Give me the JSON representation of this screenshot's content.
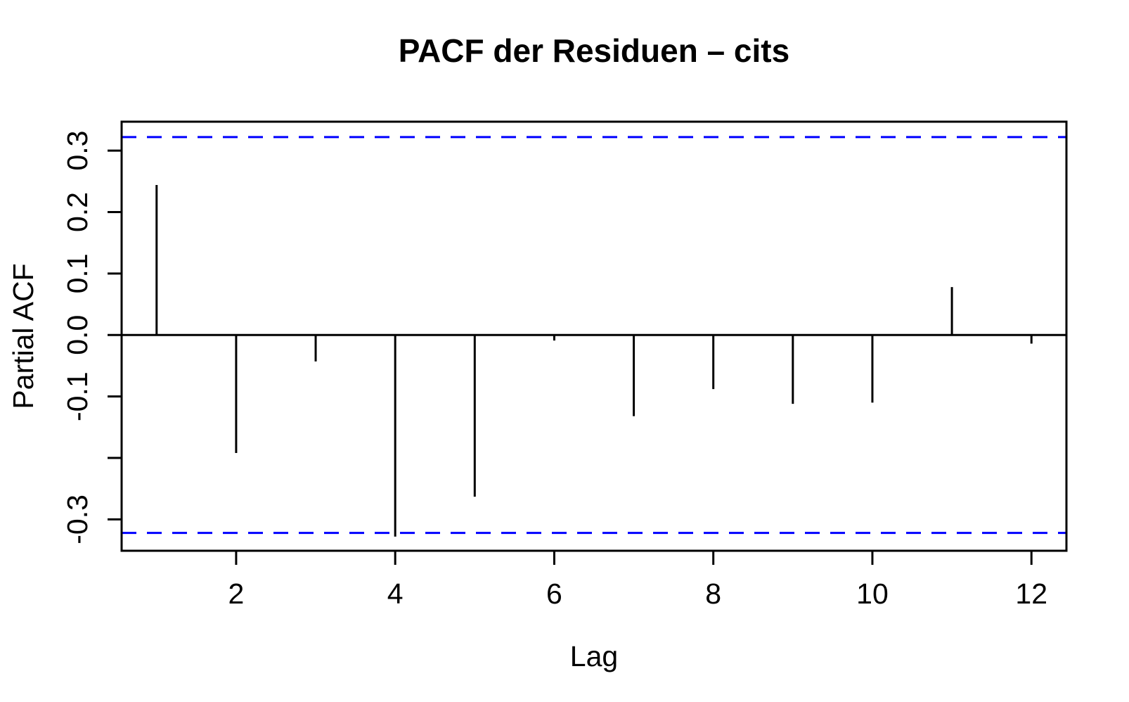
{
  "window": {
    "background_color": "#FFFFFF"
  },
  "chart_data": {
    "type": "bar",
    "chart_style": "R-base-PACF-spike-plot",
    "title": "PACF der Residuen – cits",
    "xlabel": "Lag",
    "ylabel": "Partial ACF",
    "lags": [
      1,
      2,
      3,
      4,
      5,
      6,
      7,
      8,
      9,
      10,
      11,
      12
    ],
    "values": [
      0.244,
      -0.192,
      -0.043,
      -0.328,
      -0.263,
      -0.009,
      -0.132,
      -0.088,
      -0.112,
      -0.11,
      0.078,
      -0.014
    ],
    "confidence_interval": {
      "upper": 0.322,
      "lower": -0.322,
      "line_style": "dashed",
      "color": "#0000FF"
    },
    "zero_line_value": 0,
    "xlim": [
      0.56,
      12.44
    ],
    "ylim": [
      -0.351,
      0.347
    ],
    "x_ticks": {
      "values": [
        2,
        4,
        6,
        8,
        10,
        12
      ],
      "labels": [
        "2",
        "4",
        "6",
        "8",
        "10",
        "12"
      ]
    },
    "y_ticks": {
      "values": [
        0.3,
        0.2,
        0.1,
        0.0,
        -0.1,
        -0.2,
        -0.3
      ],
      "labels": [
        "0.3",
        "0.2",
        "0.1",
        "0.0",
        "-0.1",
        "",
        "-0.3"
      ]
    },
    "grid": false,
    "legend": null,
    "colors": {
      "spikes": "#000000",
      "axes": "#000000",
      "ci_lines": "#0000FF",
      "text": "#000000",
      "background": "#FFFFFF"
    }
  }
}
